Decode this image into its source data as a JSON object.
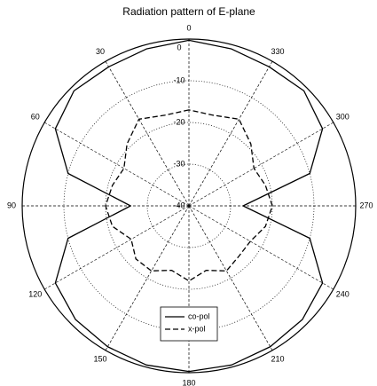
{
  "chart_data": {
    "type": "polar",
    "title": "Radiation pattern of E-plane",
    "theta": [
      0,
      15,
      30,
      45,
      60,
      75,
      90,
      105,
      120,
      135,
      150,
      165,
      180,
      195,
      210,
      225,
      240,
      255,
      270,
      285,
      300,
      315,
      330,
      345
    ],
    "series": [
      {
        "name": "co-pol",
        "color": "#000000",
        "dash": "solid",
        "values": [
          -0.3,
          -1,
          -1.5,
          -1,
          -3,
          -10,
          -26,
          -10,
          -3,
          -1.5,
          -1,
          -0.5,
          -0.3,
          -0.5,
          -1,
          -1.5,
          -3,
          -10,
          -27,
          -10,
          -3,
          -1,
          -1.5,
          -1
        ]
      },
      {
        "name": "x-pol",
        "color": "#000000",
        "dash": "dashed",
        "values": [
          -17,
          -17.5,
          -16,
          -19,
          -22,
          -21,
          -20,
          -21,
          -24,
          -22,
          -22,
          -24,
          -22,
          -24,
          -22,
          -23,
          -23,
          -21,
          -20,
          -21,
          -22,
          -19,
          -16,
          -17.5
        ]
      }
    ],
    "rlim": [
      -40,
      0
    ],
    "rticks": [
      0,
      -10,
      -20,
      -30,
      -40
    ],
    "thetaticks": [
      0,
      30,
      60,
      90,
      120,
      150,
      180,
      210,
      240,
      270,
      300,
      330
    ],
    "theta_direction": "counterclockwise",
    "theta_zero": "top",
    "grid": true,
    "legend": "bottom"
  }
}
